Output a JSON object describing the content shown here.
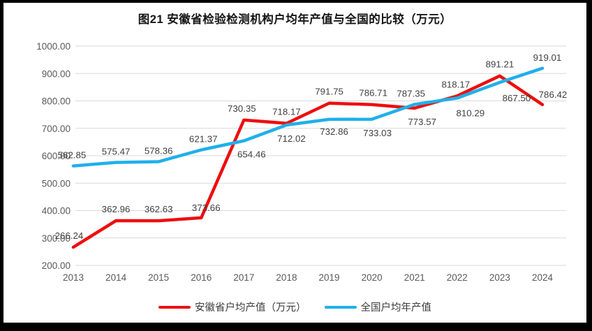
{
  "page": {
    "background": "#ffffff",
    "frame_color": "#000000"
  },
  "chart_data": {
    "type": "line",
    "title": "图21 安徽省检验检测机构户均年产值与全国的比较（万元）",
    "categories": [
      "2013",
      "2014",
      "2015",
      "2016",
      "2017",
      "2018",
      "2019",
      "2020",
      "2021",
      "2022",
      "2023",
      "2024"
    ],
    "series": [
      {
        "name": "安徽省户均产值（万元）",
        "color": "#ed0f0f",
        "values": [
          266.24,
          362.96,
          362.63,
          373.66,
          730.35,
          718.17,
          791.75,
          786.71,
          773.57,
          818.17,
          891.21,
          786.42
        ]
      },
      {
        "name": "全国户均年产值",
        "color": "#1fb0ea",
        "values": [
          562.85,
          575.47,
          578.36,
          621.37,
          654.46,
          712.02,
          732.86,
          733.03,
          787.35,
          810.29,
          867.5,
          919.01
        ]
      }
    ],
    "ylim": [
      200,
      1000
    ],
    "ytick_step": 100,
    "ytick_labels": [
      "200.00",
      "300.00",
      "400.00",
      "500.00",
      "600.00",
      "700.00",
      "800.00",
      "900.00",
      "1000.00"
    ],
    "grid": true,
    "legend_position": "bottom",
    "gridline_color": "#d9d9d9",
    "axis_text_color": "#595959",
    "label_text_color": "#3f3f3f"
  }
}
